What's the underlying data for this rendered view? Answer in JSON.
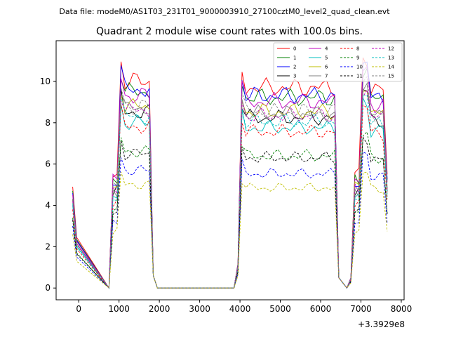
{
  "figure": {
    "suptitle": "Data file: modeM0/AS1T03_231T01_9000003910_27100cztM0_level2_quad_clean.evt"
  },
  "chart_data": {
    "type": "line",
    "title": "Quadrant 2 module wise count rates with 100.0s bins.",
    "xlabel": "",
    "ylabel": "",
    "x_offset_label": "+3.3929e8",
    "xlim": [
      -560,
      8070
    ],
    "ylim": [
      -0.57,
      11.97
    ],
    "x_ticks": [
      0,
      1000,
      2000,
      3000,
      4000,
      5000,
      6000,
      7000,
      8000
    ],
    "y_ticks": [
      0,
      2,
      4,
      6,
      8,
      10
    ],
    "grid": false,
    "legend_placement": "top-right",
    "x": [
      -150,
      -50,
      750,
      850,
      950,
      1050,
      1150,
      1250,
      1350,
      1450,
      1550,
      1650,
      1750,
      1850,
      1950,
      3850,
      3950,
      4050,
      4150,
      4250,
      4350,
      4450,
      4550,
      4650,
      4750,
      4850,
      4950,
      5050,
      5150,
      5250,
      5350,
      5450,
      5550,
      5650,
      5750,
      5850,
      5950,
      6050,
      6150,
      6250,
      6350,
      6450,
      6650,
      6750,
      6850,
      6950,
      7050,
      7150,
      7250,
      7350,
      7450,
      7550,
      7650
    ],
    "series": [
      {
        "name": "0",
        "color": "#ff0000",
        "dash": false,
        "base": 10.0,
        "edge": 4.9
      },
      {
        "name": "1",
        "color": "#008000",
        "dash": false,
        "base": 9.5,
        "edge": 4.7
      },
      {
        "name": "2",
        "color": "#0000ff",
        "dash": false,
        "base": 9.6,
        "edge": 4.6
      },
      {
        "name": "3",
        "color": "#000000",
        "dash": false,
        "base": 8.5,
        "edge": 4.3
      },
      {
        "name": "4",
        "color": "#bf00bf",
        "dash": false,
        "base": 9.3,
        "edge": 4.5
      },
      {
        "name": "5",
        "color": "#00bfbf",
        "dash": false,
        "base": 8.0,
        "edge": 4.0
      },
      {
        "name": "6",
        "color": "#bfbf00",
        "dash": false,
        "base": 8.8,
        "edge": 4.3
      },
      {
        "name": "7",
        "color": "#808080",
        "dash": false,
        "base": 8.7,
        "edge": 4.3
      },
      {
        "name": "8",
        "color": "#ff0000",
        "dash": true,
        "base": 7.8,
        "edge": 3.8
      },
      {
        "name": "9",
        "color": "#008000",
        "dash": true,
        "base": 6.6,
        "edge": 3.4
      },
      {
        "name": "10",
        "color": "#0000ff",
        "dash": true,
        "base": 5.7,
        "edge": 3.0
      },
      {
        "name": "11",
        "color": "#000000",
        "dash": true,
        "base": 6.5,
        "edge": 3.3
      },
      {
        "name": "12",
        "color": "#bf00bf",
        "dash": true,
        "base": 8.6,
        "edge": 4.2
      },
      {
        "name": "13",
        "color": "#00bfbf",
        "dash": true,
        "base": 8.3,
        "edge": 4.1
      },
      {
        "name": "14",
        "color": "#bfbf00",
        "dash": true,
        "base": 5.0,
        "edge": 2.6
      },
      {
        "name": "15",
        "color": "#808080",
        "dash": true,
        "base": 8.8,
        "edge": 4.3
      }
    ]
  }
}
